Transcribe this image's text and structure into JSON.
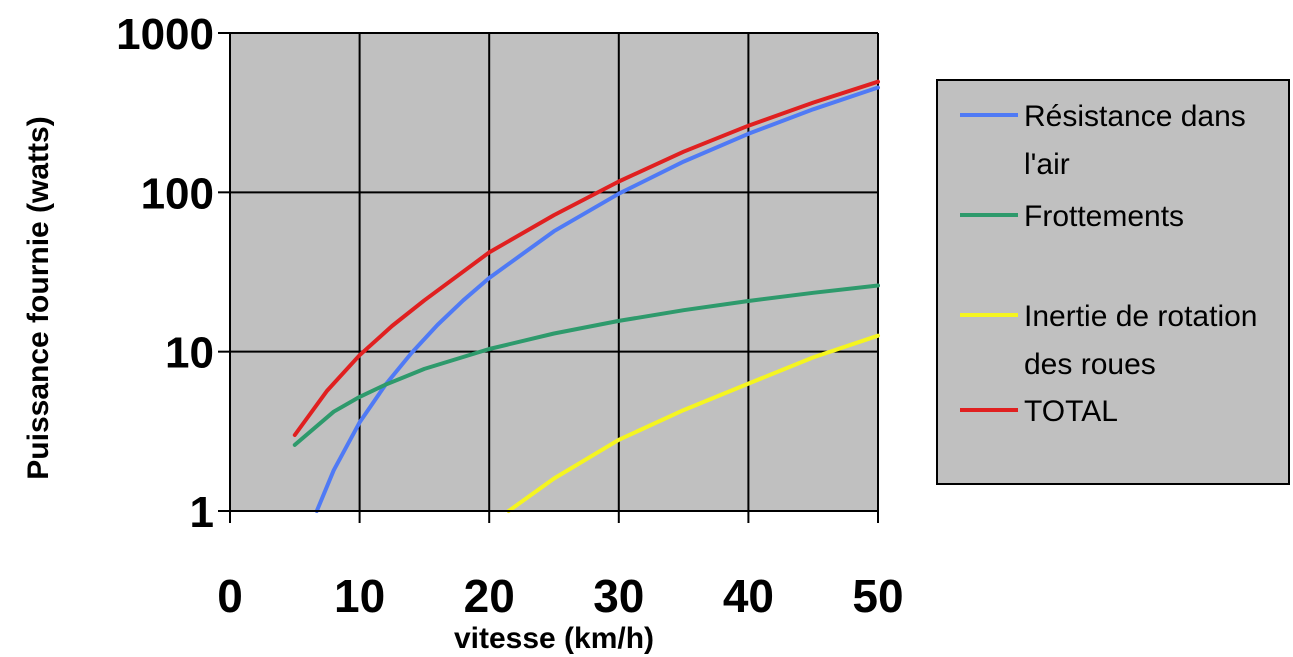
{
  "chart_data": {
    "type": "line",
    "title": "",
    "xlabel": "vitesse (km/h)",
    "ylabel": "Puissance fournie (watts)",
    "xlim": [
      0,
      50
    ],
    "ylim": [
      1,
      1000
    ],
    "yscale": "log",
    "x_ticks": [
      "0",
      "10",
      "20",
      "30",
      "40",
      "50"
    ],
    "y_ticks": [
      "1",
      "10",
      "100",
      "1000"
    ],
    "grid": true,
    "plot_background": "#c0c0c0",
    "legend_position": "right",
    "series": [
      {
        "name": "Résistance dans l'air",
        "legend_lines": [
          "Résistance dans",
          "l'air"
        ],
        "color": "#4f7af5",
        "x": [
          6.7,
          8,
          10,
          12,
          14,
          16,
          18,
          20,
          25,
          30,
          35,
          40,
          45,
          50
        ],
        "y": [
          1,
          1.8,
          3.6,
          6.2,
          9.8,
          14.7,
          21,
          29,
          57,
          98,
          156,
          233,
          332,
          455
        ]
      },
      {
        "name": "Frottements",
        "legend_lines": [
          "Frottements"
        ],
        "color": "#2e9a6c",
        "x": [
          5,
          8,
          10,
          12,
          15,
          20,
          25,
          30,
          35,
          40,
          45,
          50
        ],
        "y": [
          2.6,
          4.2,
          5.2,
          6.2,
          7.8,
          10.4,
          13,
          15.6,
          18.2,
          20.8,
          23.4,
          26
        ]
      },
      {
        "name": "Inertie de rotation des roues",
        "legend_lines": [
          "Inertie de rotation",
          "des roues"
        ],
        "color": "#f5f520",
        "x": [
          21.5,
          25,
          30,
          35,
          40,
          45,
          50
        ],
        "y": [
          1,
          1.6,
          2.8,
          4.3,
          6.3,
          9.2,
          12.6
        ]
      },
      {
        "name": "TOTAL",
        "legend_lines": [
          "TOTAL"
        ],
        "color": "#e02020",
        "x": [
          5,
          7.5,
          10,
          12.5,
          15,
          20,
          25,
          30,
          35,
          40,
          45,
          50
        ],
        "y": [
          3,
          5.7,
          9.5,
          14.5,
          21,
          42,
          72,
          117,
          180,
          262,
          366,
          495
        ]
      }
    ]
  }
}
